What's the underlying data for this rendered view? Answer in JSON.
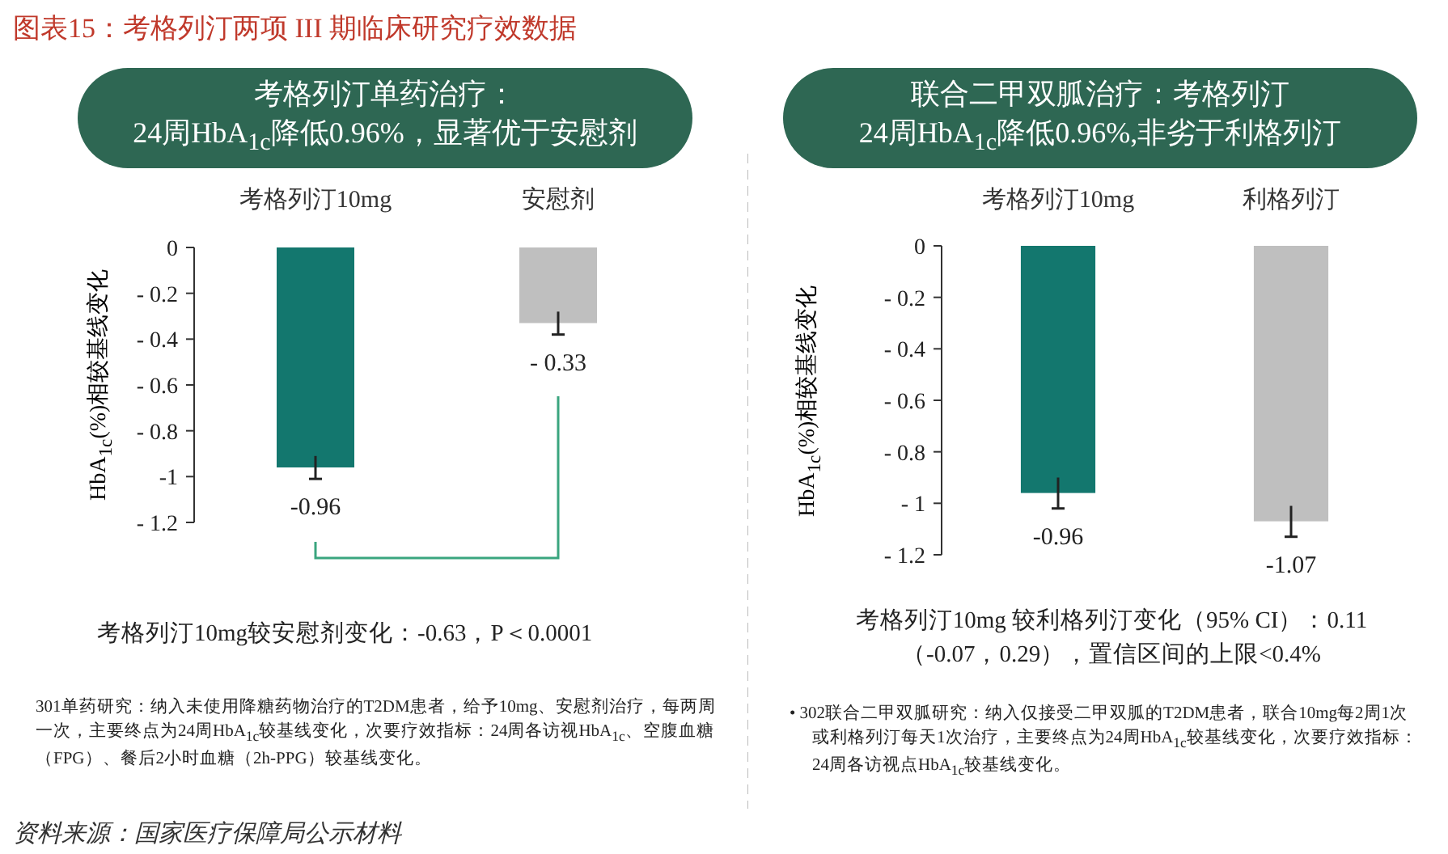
{
  "chart_data": [
    {
      "type": "bar",
      "title": "考格列汀单药治疗：",
      "subtitle": "24周HbA$_{1c}$降低0.96%，显著优于安慰剂",
      "ylabel": "HbA$_{1c}$(%)相较基线变化",
      "categories": [
        "考格列汀10mg",
        "安慰剂"
      ],
      "values": [
        -0.96,
        -0.33
      ],
      "colors": [
        "#13776e",
        "#bfbfbf"
      ],
      "errors": [
        0.05,
        0.05
      ],
      "value_labels": [
        "-0.96",
        "- 0.33"
      ],
      "ylim": [
        -1.2,
        0
      ],
      "yticks": [
        {
          "value": 0,
          "label": "0"
        },
        {
          "value": -0.2,
          "label": "- 0.2"
        },
        {
          "value": -0.4,
          "label": "- 0.4"
        },
        {
          "value": -0.6,
          "label": "- 0.6"
        },
        {
          "value": -0.8,
          "label": "- 0.8"
        },
        {
          "value": -1,
          "label": "-1"
        },
        {
          "value": -1.2,
          "label": "- 1.2"
        }
      ],
      "annotations": [
        "图表15：考格列汀两项 III 期临床研究疗效数据",
        "考格列汀10mg较安慰剂变化：-0.63，P＜0.0001",
        "301单药研究：纳入未使用降糖药物治疗的T2DM患者，给予10mg、安慰剂治疗，每两周一次，主要终点为24周HbA$_{1c}$较基线变化，次要疗效指标：24周各访视HbA$_{1c}$、空腹血糖（FPG）、餐后2小时血糖（2h-PPG）较基线变化。",
        "资料来源：国家医疗保障局公示材料"
      ]
    },
    {
      "type": "bar",
      "title": "联合二甲双胍治疗：考格列汀",
      "subtitle": "24周HbA$_{1c}$降低0.96%,非劣于利格列汀",
      "ylabel": "HbA$_{1c}$(%)相较基线变化",
      "categories": [
        "考格列汀10mg",
        "利格列汀"
      ],
      "values": [
        -0.96,
        -1.07
      ],
      "colors": [
        "#13776e",
        "#bfbfbf"
      ],
      "errors": [
        0.06,
        0.06
      ],
      "value_labels": [
        "-0.96",
        "-1.07"
      ],
      "ylim": [
        -1.2,
        0
      ],
      "yticks": [
        {
          "value": 0,
          "label": "0"
        },
        {
          "value": -0.2,
          "label": "- 0.2"
        },
        {
          "value": -0.4,
          "label": "- 0.4"
        },
        {
          "value": -0.6,
          "label": "- 0.6"
        },
        {
          "value": -0.8,
          "label": "- 0.8"
        },
        {
          "value": -1,
          "label": "- 1"
        },
        {
          "value": -1.2,
          "label": "- 1.2"
        }
      ],
      "annotations": [
        "考格列汀10mg 较利格列汀变化（95% CI）：0.11（-0.07，0.29），置信区间的上限<0.4%",
        "• 302联合二甲双胍研究：纳入仅接受二甲双胍的T2DM患者，联合10mg每2周1次或利格列汀每天1次治疗，主要终点为24周HbA$_{1c}$较基线变化，次要疗效指标：24周各访视点HbA$_{1c}$较基线变化。"
      ]
    }
  ]
}
